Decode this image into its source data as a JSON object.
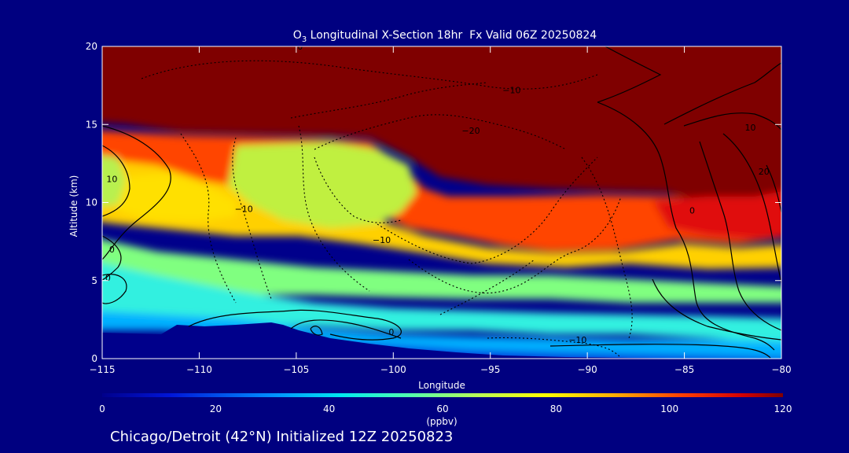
{
  "chart_data": {
    "type": "heatmap",
    "title_main": "O",
    "title_sub": "3",
    "title_rest": " Longitudinal X-Section 18hr  Fx Valid 06Z 20250824",
    "xlabel": "Longitude",
    "ylabel": "Altitude (km)",
    "xlim": [
      -115,
      -80
    ],
    "ylim": [
      0,
      20
    ],
    "x_ticks": [
      -115,
      -110,
      -105,
      -100,
      -95,
      -90,
      -85,
      -80
    ],
    "x_tick_labels": [
      "−115",
      "−110",
      "−105",
      "−100",
      "−95",
      "−90",
      "−85",
      "−80"
    ],
    "y_ticks": [
      0,
      5,
      10,
      15,
      20
    ],
    "y_tick_labels": [
      "0",
      "5",
      "10",
      "15",
      "20"
    ],
    "colorbar": {
      "label": "(ppbv)",
      "range": [
        0,
        120
      ],
      "ticks": [
        0,
        20,
        40,
        60,
        80,
        100,
        120
      ],
      "tick_labels": [
        "0",
        "20",
        "40",
        "60",
        "80",
        "100",
        "120"
      ]
    },
    "contour_labels": [
      {
        "text": "0",
        "lon": -104.8,
        "alt": 19.8
      },
      {
        "text": "−10",
        "lon": -93.9,
        "alt": 17.0
      },
      {
        "text": "−20",
        "lon": -96.0,
        "alt": 14.4
      },
      {
        "text": "10",
        "lon": -114.5,
        "alt": 11.3
      },
      {
        "text": "−10",
        "lon": -107.7,
        "alt": 9.4
      },
      {
        "text": "0",
        "lon": -114.5,
        "alt": 6.8
      },
      {
        "text": "0",
        "lon": -114.7,
        "alt": 5.0
      },
      {
        "text": "−10",
        "lon": -100.6,
        "alt": 7.4
      },
      {
        "text": "0",
        "lon": -100.1,
        "alt": 1.5
      },
      {
        "text": "−10",
        "lon": -90.5,
        "alt": 1.0
      },
      {
        "text": "10",
        "lon": -81.6,
        "alt": 14.6
      },
      {
        "text": "0",
        "lon": -84.6,
        "alt": 9.3
      },
      {
        "text": "20",
        "lon": -80.9,
        "alt": 11.8
      }
    ]
  },
  "footer": {
    "caption": "Chicago/Detroit (42°N) Initialized 12Z 20250823"
  }
}
